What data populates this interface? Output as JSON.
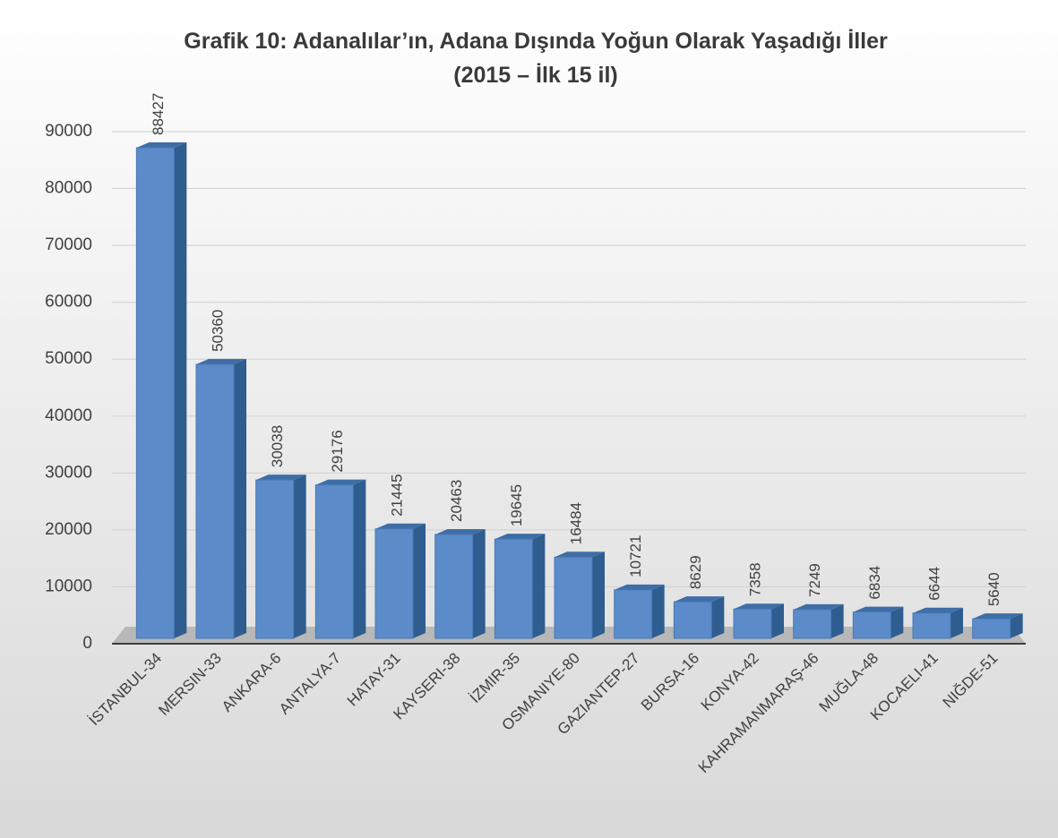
{
  "chart_data": {
    "type": "bar3d",
    "title": "Grafik 10: Adanalılar’ın, Adana Dışında Yoğun Olarak Yaşadığı İller",
    "subtitle": "(2015 – İlk 15 il)",
    "categories": [
      "İSTANBUL-34",
      "MERSIN-33",
      "ANKARA-6",
      "ANTALYA-7",
      "HATAY-31",
      "KAYSERI-38",
      "İZMIR-35",
      "OSMANIYE-80",
      "GAZIANTEP-27",
      "BURSA-16",
      "KONYA-42",
      "KAHRAMANMARAŞ-46",
      "MUĞLA-48",
      "KOCAELI-41",
      "NIĞDE-51"
    ],
    "values": [
      88427,
      50360,
      30038,
      29176,
      21445,
      20463,
      19645,
      16484,
      10721,
      8629,
      7358,
      7249,
      6834,
      6644,
      5640
    ],
    "color": "#5b8bc9",
    "ylim": [
      0,
      90000
    ],
    "yticks": [
      0,
      10000,
      20000,
      30000,
      40000,
      50000,
      60000,
      70000,
      80000,
      90000
    ],
    "grid": true
  }
}
